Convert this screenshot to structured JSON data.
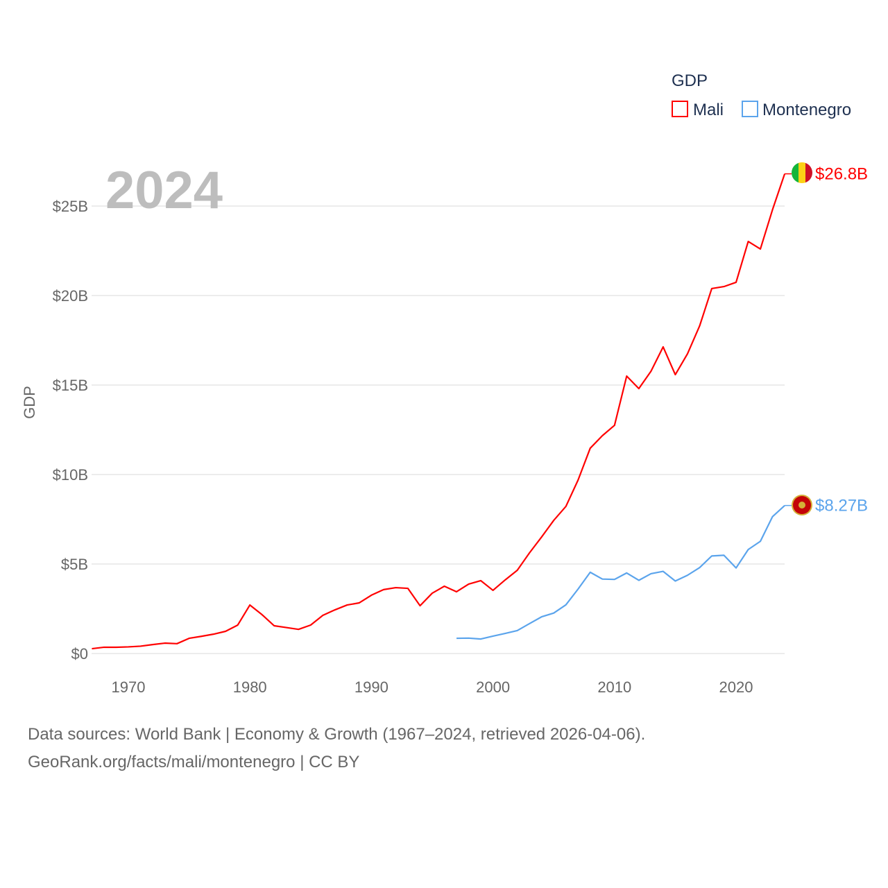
{
  "chart_data": {
    "type": "line",
    "watermark_year": "2024",
    "ylabel": "GDP",
    "ylim": [
      0,
      27
    ],
    "xlim": [
      1967,
      2024
    ],
    "yticks": [
      {
        "v": 0,
        "label": "$0"
      },
      {
        "v": 5,
        "label": "$5B"
      },
      {
        "v": 10,
        "label": "$10B"
      },
      {
        "v": 15,
        "label": "$15B"
      },
      {
        "v": 20,
        "label": "$20B"
      },
      {
        "v": 25,
        "label": "$25B"
      }
    ],
    "xticks": [
      {
        "v": 1970,
        "label": "1970"
      },
      {
        "v": 1980,
        "label": "1980"
      },
      {
        "v": 1990,
        "label": "1990"
      },
      {
        "v": 2000,
        "label": "2000"
      },
      {
        "v": 2010,
        "label": "2010"
      },
      {
        "v": 2020,
        "label": "2020"
      }
    ],
    "legend": {
      "title": "GDP",
      "placement": "top-right"
    },
    "series": [
      {
        "name": "Mali",
        "color": "#ff0000",
        "end_label": "$26.8B",
        "start": 1967,
        "values": [
          0.27,
          0.35,
          0.35,
          0.37,
          0.41,
          0.5,
          0.58,
          0.55,
          0.85,
          0.96,
          1.08,
          1.24,
          1.59,
          2.71,
          2.17,
          1.55,
          1.45,
          1.35,
          1.59,
          2.13,
          2.44,
          2.71,
          2.83,
          3.26,
          3.57,
          3.68,
          3.64,
          2.67,
          3.37,
          3.76,
          3.45,
          3.88,
          4.07,
          3.53,
          4.11,
          4.65,
          5.62,
          6.51,
          7.44,
          8.22,
          9.69,
          11.47,
          12.17,
          12.75,
          15.5,
          14.8,
          15.77,
          17.13,
          15.58,
          16.74,
          18.3,
          20.39,
          20.5,
          20.74,
          23.02,
          22.6,
          24.8,
          26.8
        ]
      },
      {
        "name": "Montenegro",
        "color": "#5ba4ec",
        "end_label": "$8.27B",
        "start": 1997,
        "values": [
          0.85,
          0.86,
          0.81,
          0.97,
          1.12,
          1.28,
          1.67,
          2.05,
          2.26,
          2.72,
          3.6,
          4.54,
          4.16,
          4.14,
          4.5,
          4.09,
          4.46,
          4.59,
          4.05,
          4.37,
          4.8,
          5.45,
          5.49,
          4.78,
          5.81,
          6.27,
          7.65,
          8.27
        ]
      }
    ]
  },
  "footer": {
    "line1": "Data sources: World Bank | Economy & Growth (1967–2024, retrieved 2026-04-06).",
    "line2": "GeoRank.org/facts/mali/montenegro | CC BY"
  }
}
